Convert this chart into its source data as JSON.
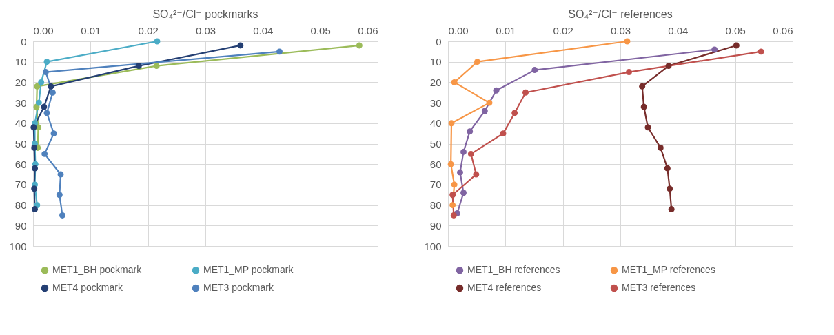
{
  "chart_data": [
    {
      "type": "line",
      "title": "SO₄²⁻/Cl⁻ pockmarks",
      "xlim": [
        0,
        0.06
      ],
      "xticks": [
        {
          "value": 0,
          "label": "0.00"
        },
        {
          "value": 0.01,
          "label": "0.01"
        },
        {
          "value": 0.02,
          "label": "0.02"
        },
        {
          "value": 0.03,
          "label": "0.03"
        },
        {
          "value": 0.04,
          "label": "0.04"
        },
        {
          "value": 0.05,
          "label": "0.05"
        },
        {
          "value": 0.06,
          "label": "0.06"
        }
      ],
      "ylim": [
        100,
        0
      ],
      "yticks": [
        0,
        10,
        20,
        30,
        40,
        50,
        60,
        70,
        80,
        90,
        100
      ],
      "grid": true,
      "legend": "bottom",
      "marker": "circle",
      "line_style": "solid",
      "series": [
        {
          "name": "MET1_BH pockmark",
          "color": "#9bbb59",
          "x": [
            0.0568,
            0.0215,
            0.0007,
            0.0006,
            0.0009,
            0.0008,
            null,
            null,
            null
          ],
          "values": [
            2,
            12,
            22,
            32,
            42,
            52,
            null,
            null,
            null
          ]
        },
        {
          "name": "MET1_MP pockmark",
          "color": "#4bacc6",
          "x": [
            0.0216,
            0.0024,
            0.0014,
            0.001,
            0.0003,
            0.0003,
            0.0004,
            0.0003,
            0.0007
          ],
          "values": [
            0,
            10,
            20,
            30,
            40,
            50,
            60,
            70,
            80
          ]
        },
        {
          "name": "MET4 pockmark",
          "color": "#243f73",
          "x": [
            0.0361,
            0.0184,
            0.0031,
            0.0019,
            0.0001,
            0.0002,
            0.0003,
            0.0002,
            0.0003
          ],
          "values": [
            2,
            12,
            22,
            32,
            42,
            52,
            62,
            72,
            82
          ]
        },
        {
          "name": "MET3 pockmark",
          "color": "#4f81bd",
          "x": [
            0.0429,
            0.0022,
            0.0034,
            0.0024,
            0.0036,
            0.002,
            0.0048,
            0.0046,
            0.0051
          ],
          "values": [
            5,
            15,
            25,
            35,
            45,
            55,
            65,
            75,
            85
          ]
        }
      ]
    },
    {
      "type": "line",
      "title": "SO₄²⁻/Cl⁻ references",
      "xlim": [
        0,
        0.06
      ],
      "xticks": [
        {
          "value": 0,
          "label": "0.00"
        },
        {
          "value": 0.01,
          "label": "0.01"
        },
        {
          "value": 0.02,
          "label": "0.02"
        },
        {
          "value": 0.03,
          "label": "0.03"
        },
        {
          "value": 0.04,
          "label": "0.04"
        },
        {
          "value": 0.05,
          "label": "0.05"
        },
        {
          "value": 0.06,
          "label": "0.06"
        }
      ],
      "ylim": [
        100,
        0
      ],
      "yticks": [
        0,
        10,
        20,
        30,
        40,
        50,
        60,
        70,
        80,
        90,
        100
      ],
      "grid": true,
      "legend": "bottom",
      "marker": "circle",
      "line_style": "solid",
      "series": [
        {
          "name": "MET1_BH references",
          "color": "#8064a2",
          "x": [
            0.0464,
            0.0151,
            0.0084,
            0.0064,
            0.0038,
            0.0027,
            0.0021,
            0.0027,
            0.0016
          ],
          "values": [
            4,
            14,
            24,
            34,
            44,
            54,
            64,
            74,
            84
          ]
        },
        {
          "name": "MET1_MP references",
          "color": "#f79646",
          "x": [
            0.0312,
            0.0051,
            0.0011,
            0.0072,
            0.0006,
            0.0005,
            0.0011,
            0.0008
          ],
          "values": [
            0,
            10,
            20,
            30,
            40,
            60,
            70,
            80
          ]
        },
        {
          "name": "MET4 references",
          "color": "#772c2a",
          "x": [
            0.0502,
            0.0384,
            0.0338,
            0.0341,
            0.0348,
            0.037,
            0.0382,
            0.0386,
            0.0389
          ],
          "values": [
            2,
            12,
            22,
            32,
            42,
            52,
            62,
            72,
            82
          ]
        },
        {
          "name": "MET3 references",
          "color": "#c0504d",
          "x": [
            0.0545,
            0.0315,
            0.0135,
            0.0116,
            0.0096,
            0.004,
            0.0049,
            0.0008,
            0.001
          ],
          "values": [
            5,
            15,
            25,
            35,
            45,
            55,
            65,
            75,
            85
          ]
        }
      ]
    }
  ]
}
